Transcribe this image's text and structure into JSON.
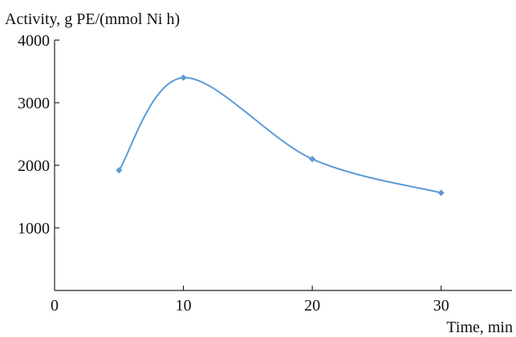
{
  "chart_data": {
    "type": "line",
    "title": "",
    "xlabel": "Time, min",
    "ylabel": "Activity, g PE/(mmol Ni h)",
    "xlim": [
      0,
      35
    ],
    "ylim": [
      0,
      4000
    ],
    "x_ticks": [
      0,
      10,
      20,
      30
    ],
    "x_tick_labels": [
      "0",
      "10",
      "20",
      "30"
    ],
    "y_ticks": [
      1000,
      2000,
      3000,
      4000
    ],
    "y_tick_labels": [
      "1000",
      "2000",
      "3000",
      "4000"
    ],
    "grid": false,
    "series": [
      {
        "x": [
          5,
          10,
          20,
          30
        ],
        "y": [
          1920,
          3400,
          2100,
          1560
        ],
        "color": "#5b9bd5"
      }
    ]
  }
}
